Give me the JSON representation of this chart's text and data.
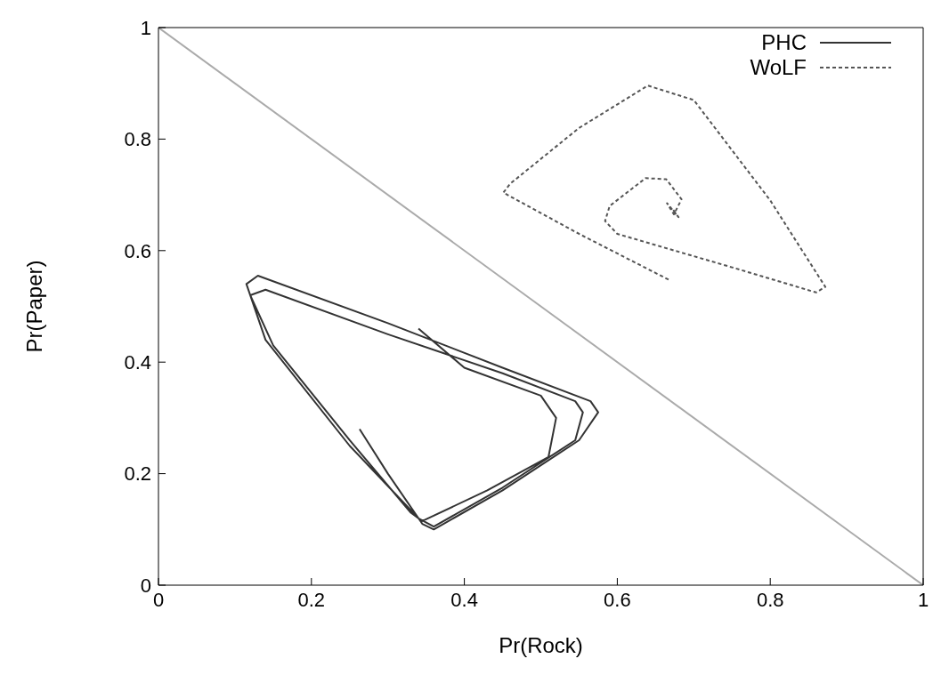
{
  "chart_data": {
    "type": "line",
    "xlabel": "Pr(Rock)",
    "ylabel": "Pr(Paper)",
    "xlim": [
      0,
      1
    ],
    "ylim": [
      0,
      1
    ],
    "xticks": [
      0,
      0.2,
      0.4,
      0.6,
      0.8,
      1
    ],
    "yticks": [
      0,
      0.2,
      0.4,
      0.6,
      0.8,
      1
    ],
    "legend": "top right",
    "marker": "none",
    "series": [
      {
        "name": "PHC",
        "color": "#333333",
        "line_style": "solid",
        "x": [
          0.263,
          0.3,
          0.345,
          0.36,
          0.45,
          0.55,
          0.575,
          0.565,
          0.45,
          0.3,
          0.13,
          0.115,
          0.14,
          0.25,
          0.34,
          0.36,
          0.45,
          0.545,
          0.555,
          0.545,
          0.45,
          0.3,
          0.14,
          0.12,
          0.15,
          0.25,
          0.33,
          0.345,
          0.43,
          0.51,
          0.52,
          0.5,
          0.4,
          0.34
        ],
        "values": [
          0.28,
          0.2,
          0.11,
          0.1,
          0.17,
          0.26,
          0.31,
          0.33,
          0.39,
          0.47,
          0.555,
          0.54,
          0.44,
          0.25,
          0.12,
          0.105,
          0.175,
          0.26,
          0.31,
          0.33,
          0.38,
          0.45,
          0.53,
          0.52,
          0.43,
          0.26,
          0.13,
          0.115,
          0.17,
          0.23,
          0.3,
          0.34,
          0.39,
          0.46
        ]
      },
      {
        "name": "WoLF",
        "color": "#555555",
        "line_style": "dashed",
        "x": [
          0.667,
          0.55,
          0.451,
          0.46,
          0.55,
          0.64,
          0.7,
          0.8,
          0.872,
          0.86,
          0.75,
          0.65,
          0.6,
          0.584,
          0.59,
          0.637,
          0.664,
          0.684,
          0.674,
          0.665,
          0.68,
          0.672
        ],
        "values": [
          0.548,
          0.63,
          0.704,
          0.72,
          0.82,
          0.896,
          0.87,
          0.69,
          0.535,
          0.525,
          0.57,
          0.61,
          0.63,
          0.653,
          0.68,
          0.73,
          0.728,
          0.692,
          0.665,
          0.685,
          0.66,
          0.675
        ]
      },
      {
        "color": "#aaaaaa",
        "line_style": "solid",
        "x": [
          0,
          1
        ],
        "values": [
          1,
          0
        ]
      }
    ]
  }
}
